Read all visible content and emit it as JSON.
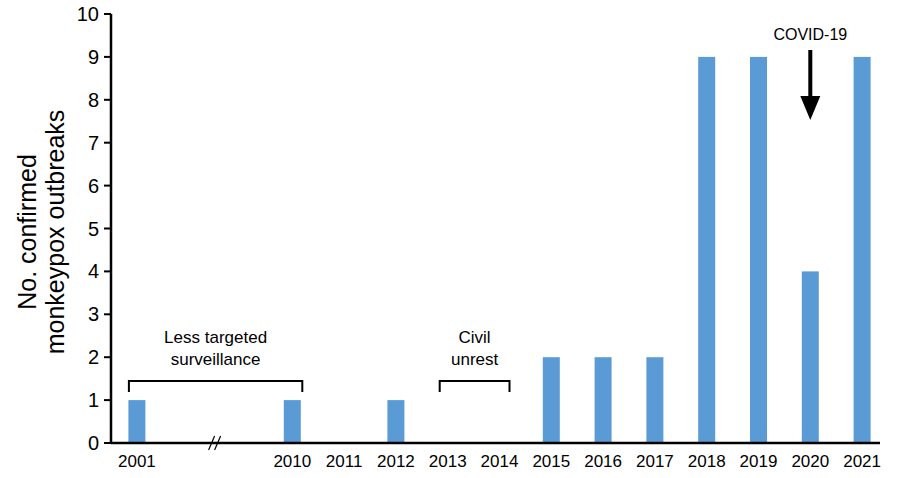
{
  "chart_data": {
    "type": "bar",
    "y_label": "No. confirmed\nmonkeypox outbreaks",
    "categories": [
      "2001",
      null,
      null,
      "2010",
      "2011",
      "2012",
      "2013",
      "2014",
      "2015",
      "2016",
      "2017",
      "2018",
      "2019",
      "2020",
      "2021"
    ],
    "values": [
      1,
      null,
      null,
      1,
      0,
      1,
      0,
      0,
      2,
      2,
      2,
      9,
      9,
      4,
      9
    ],
    "color": "#5b9bd5",
    "ylim": [
      0,
      10
    ],
    "yticks": [
      0,
      1,
      2,
      3,
      4,
      5,
      6,
      7,
      8,
      9,
      10
    ],
    "grid": false,
    "annotations": [
      {
        "text": "Less targeted\nsurveillance",
        "from": "2001",
        "to": "2010"
      },
      {
        "text": "Civil\nunrest",
        "from": "2013",
        "to": "2014"
      },
      {
        "text": "COVID-19",
        "at": "2020"
      }
    ]
  }
}
